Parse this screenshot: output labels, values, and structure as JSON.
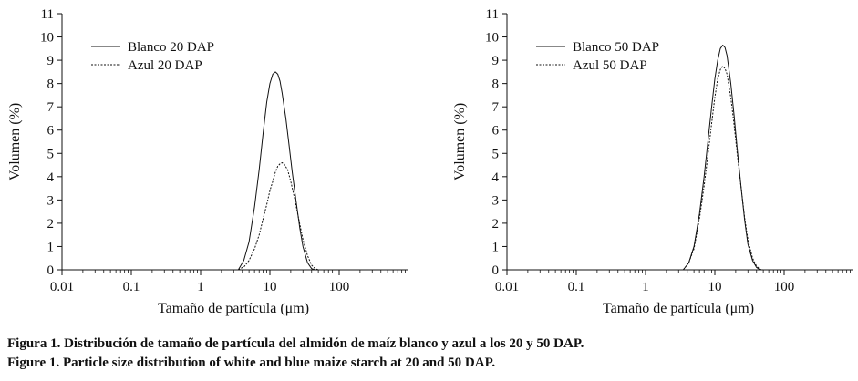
{
  "chart_data": [
    {
      "type": "line",
      "xlabel": "Tamaño de partícula (μm)",
      "ylabel": "Volumen (%)",
      "x_scale": "log",
      "xlim": [
        0.01,
        1000
      ],
      "ylim": [
        0,
        11
      ],
      "x_ticks": [
        "0.01",
        "0.1",
        "1",
        "10",
        "100"
      ],
      "y_ticks": [
        "0",
        "1",
        "2",
        "3",
        "4",
        "5",
        "6",
        "7",
        "8",
        "9",
        "10",
        "11"
      ],
      "legend_position": "top-left",
      "series": [
        {
          "name": "Blanco 20 DAP",
          "style": "solid",
          "points": [
            [
              0.02,
              0
            ],
            [
              3.5,
              0
            ],
            [
              4.2,
              0.4
            ],
            [
              5,
              1.2
            ],
            [
              6,
              2.7
            ],
            [
              7,
              4.3
            ],
            [
              8,
              5.9
            ],
            [
              9,
              7.2
            ],
            [
              10,
              8.0
            ],
            [
              11,
              8.4
            ],
            [
              12,
              8.5
            ],
            [
              13,
              8.4
            ],
            [
              14,
              8.1
            ],
            [
              15,
              7.6
            ],
            [
              17,
              6.5
            ],
            [
              19,
              5.3
            ],
            [
              21,
              4.2
            ],
            [
              24,
              2.9
            ],
            [
              27,
              1.8
            ],
            [
              30,
              1.0
            ],
            [
              35,
              0.3
            ],
            [
              40,
              0.05
            ],
            [
              45,
              0
            ],
            [
              110,
              0
            ]
          ]
        },
        {
          "name": "Azul 20 DAP",
          "style": "dashed",
          "points": [
            [
              3.5,
              0
            ],
            [
              4.3,
              0.15
            ],
            [
              5,
              0.4
            ],
            [
              6,
              0.9
            ],
            [
              7,
              1.5
            ],
            [
              8,
              2.2
            ],
            [
              9,
              2.8
            ],
            [
              10,
              3.4
            ],
            [
              11,
              3.8
            ],
            [
              12,
              4.2
            ],
            [
              13,
              4.45
            ],
            [
              14,
              4.55
            ],
            [
              15,
              4.6
            ],
            [
              16,
              4.55
            ],
            [
              18,
              4.3
            ],
            [
              20,
              3.8
            ],
            [
              23,
              3.0
            ],
            [
              26,
              2.2
            ],
            [
              30,
              1.3
            ],
            [
              35,
              0.6
            ],
            [
              40,
              0.2
            ],
            [
              45,
              0.05
            ],
            [
              50,
              0
            ]
          ]
        }
      ]
    },
    {
      "type": "line",
      "xlabel": "Tamaño de partícula (μm)",
      "ylabel": "Volumen (%)",
      "x_scale": "log",
      "xlim": [
        0.01,
        1000
      ],
      "ylim": [
        0,
        11
      ],
      "x_ticks": [
        "0.01",
        "0.1",
        "1",
        "10",
        "100"
      ],
      "y_ticks": [
        "0",
        "1",
        "2",
        "3",
        "4",
        "5",
        "6",
        "7",
        "8",
        "9",
        "10",
        "11"
      ],
      "legend_position": "top-left",
      "series": [
        {
          "name": "Blanco 50 DAP",
          "style": "solid",
          "points": [
            [
              3.5,
              0
            ],
            [
              4.2,
              0.3
            ],
            [
              5,
              1.0
            ],
            [
              6,
              2.4
            ],
            [
              7,
              4.0
            ],
            [
              8,
              5.6
            ],
            [
              9,
              7.0
            ],
            [
              10,
              8.2
            ],
            [
              11,
              9.0
            ],
            [
              12,
              9.5
            ],
            [
              13,
              9.65
            ],
            [
              14,
              9.55
            ],
            [
              15,
              9.2
            ],
            [
              17,
              8.0
            ],
            [
              19,
              6.6
            ],
            [
              21,
              5.2
            ],
            [
              24,
              3.5
            ],
            [
              27,
              2.1
            ],
            [
              30,
              1.1
            ],
            [
              35,
              0.4
            ],
            [
              40,
              0.1
            ],
            [
              45,
              0
            ]
          ]
        },
        {
          "name": "Azul 50 DAP",
          "style": "dashed",
          "points": [
            [
              3.5,
              0
            ],
            [
              4.2,
              0.3
            ],
            [
              5,
              0.9
            ],
            [
              6,
              2.2
            ],
            [
              7,
              3.6
            ],
            [
              8,
              5.0
            ],
            [
              9,
              6.3
            ],
            [
              10,
              7.4
            ],
            [
              11,
              8.2
            ],
            [
              12,
              8.6
            ],
            [
              13,
              8.75
            ],
            [
              14,
              8.65
            ],
            [
              15,
              8.4
            ],
            [
              17,
              7.4
            ],
            [
              19,
              6.2
            ],
            [
              21,
              5.0
            ],
            [
              24,
              3.5
            ],
            [
              27,
              2.2
            ],
            [
              30,
              1.3
            ],
            [
              35,
              0.5
            ],
            [
              40,
              0.15
            ],
            [
              45,
              0.02
            ],
            [
              50,
              0
            ]
          ]
        }
      ]
    }
  ],
  "caption": {
    "es": "Figura 1. Distribución de tamaño de partícula del almidón de maíz blanco y azul a los 20 y 50 DAP.",
    "en": "Figure 1. Particle size distribution of white and blue maize starch at 20 and 50 DAP."
  },
  "colors": {
    "line": "#111111",
    "axis": "#111111",
    "background": "#ffffff"
  }
}
